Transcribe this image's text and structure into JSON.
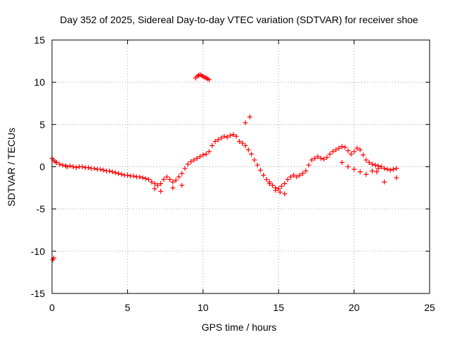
{
  "chart_data": {
    "type": "scatter",
    "title": "Day 352 of 2025, Sidereal Day-to-day VTEC variation (SDTVAR) for receiver shoe",
    "xlabel": "GPS time / hours",
    "ylabel": "SDTVAR / TECUs",
    "xlim": [
      0,
      25
    ],
    "ylim": [
      -15,
      15
    ],
    "x_ticks": [
      0,
      5,
      10,
      15,
      20,
      25
    ],
    "y_ticks": [
      -15,
      -10,
      -5,
      0,
      5,
      10,
      15
    ],
    "x_tick_labels": [
      "0",
      "5",
      "10",
      "15",
      "20",
      "25"
    ],
    "y_tick_labels": [
      "-15",
      "-10",
      "-5",
      "0",
      "5",
      "10",
      "15"
    ],
    "grid": true,
    "marker": "+",
    "color": "#ff0000",
    "series": [
      {
        "name": "SDTVAR",
        "x": [
          0.0,
          0.1,
          0.2,
          0.3,
          0.5,
          0.7,
          0.9,
          1.0,
          1.2,
          1.4,
          1.6,
          1.8,
          2.0,
          2.2,
          2.4,
          2.6,
          2.8,
          3.0,
          3.2,
          3.4,
          3.6,
          3.8,
          4.0,
          4.2,
          4.4,
          4.6,
          4.8,
          5.0,
          5.2,
          5.4,
          5.6,
          5.8,
          6.0,
          6.2,
          6.4,
          6.6,
          6.8,
          7.0,
          7.2,
          7.4,
          7.6,
          7.8,
          8.0,
          8.2,
          8.4,
          8.6,
          8.8,
          9.0,
          9.2,
          9.4,
          9.6,
          9.8,
          10.0,
          10.2,
          10.4,
          10.6,
          10.8,
          11.0,
          11.2,
          11.4,
          11.6,
          11.8,
          12.0,
          12.2,
          12.4,
          12.6,
          12.8,
          13.0,
          13.2,
          13.4,
          13.6,
          13.8,
          14.0,
          14.2,
          14.4,
          14.6,
          14.8,
          15.0,
          15.2,
          15.4,
          15.6,
          15.8,
          16.0,
          16.2,
          16.4,
          16.6,
          16.8,
          17.0,
          17.2,
          17.4,
          17.6,
          17.8,
          18.0,
          18.2,
          18.4,
          18.6,
          18.8,
          19.0,
          19.2,
          19.4,
          19.6,
          19.8,
          20.0,
          20.2,
          20.4,
          20.6,
          20.8,
          21.0,
          21.2,
          21.4,
          21.6,
          21.8,
          22.0,
          22.2,
          22.4,
          22.6,
          22.8,
          0.05,
          0.12,
          9.5,
          9.6,
          9.7,
          9.8,
          9.9,
          10.0,
          10.1,
          10.2,
          10.3,
          10.4,
          12.8,
          13.1,
          19.2,
          19.6,
          20.0,
          20.4,
          20.8,
          21.2,
          21.6,
          22.0,
          6.8,
          7.2,
          8.0,
          8.6,
          14.4,
          14.8,
          15.1,
          15.4,
          21.5,
          22.8
        ],
        "y": [
          1.0,
          0.8,
          0.6,
          0.5,
          0.3,
          0.2,
          0.1,
          0.0,
          0.1,
          0.0,
          -0.1,
          0.0,
          0.0,
          -0.1,
          -0.1,
          -0.2,
          -0.2,
          -0.3,
          -0.3,
          -0.4,
          -0.5,
          -0.5,
          -0.6,
          -0.7,
          -0.8,
          -0.9,
          -1.0,
          -1.0,
          -1.1,
          -1.1,
          -1.2,
          -1.2,
          -1.3,
          -1.4,
          -1.5,
          -1.8,
          -2.0,
          -2.2,
          -2.0,
          -1.5,
          -1.2,
          -1.5,
          -1.8,
          -1.6,
          -1.2,
          -0.8,
          -0.2,
          0.3,
          0.6,
          0.8,
          1.0,
          1.2,
          1.4,
          1.5,
          1.8,
          2.5,
          3.0,
          3.2,
          3.4,
          3.6,
          3.5,
          3.7,
          3.8,
          3.6,
          3.0,
          2.8,
          2.5,
          2.0,
          1.5,
          0.8,
          0.2,
          -0.4,
          -1.0,
          -1.5,
          -1.8,
          -2.2,
          -2.5,
          -2.6,
          -2.3,
          -2.0,
          -1.5,
          -1.2,
          -1.0,
          -1.2,
          -1.0,
          -0.8,
          -0.5,
          0.2,
          0.8,
          1.0,
          1.2,
          1.0,
          0.9,
          1.1,
          1.5,
          1.8,
          2.0,
          2.2,
          2.4,
          2.3,
          1.9,
          1.5,
          1.8,
          2.2,
          2.0,
          1.4,
          0.8,
          0.5,
          0.3,
          0.2,
          0.1,
          0.0,
          -0.2,
          -0.3,
          -0.4,
          -0.3,
          -0.2,
          -11.0,
          -10.8,
          10.5,
          10.7,
          10.8,
          10.9,
          10.8,
          10.7,
          10.6,
          10.5,
          10.4,
          10.3,
          5.2,
          5.9,
          0.5,
          0.0,
          -0.3,
          -0.6,
          -0.9,
          -0.5,
          -0.2,
          -1.8,
          -2.6,
          -2.9,
          -2.5,
          -2.2,
          -2.0,
          -2.8,
          -3.0,
          -3.2,
          -0.6,
          -1.3
        ]
      }
    ]
  }
}
